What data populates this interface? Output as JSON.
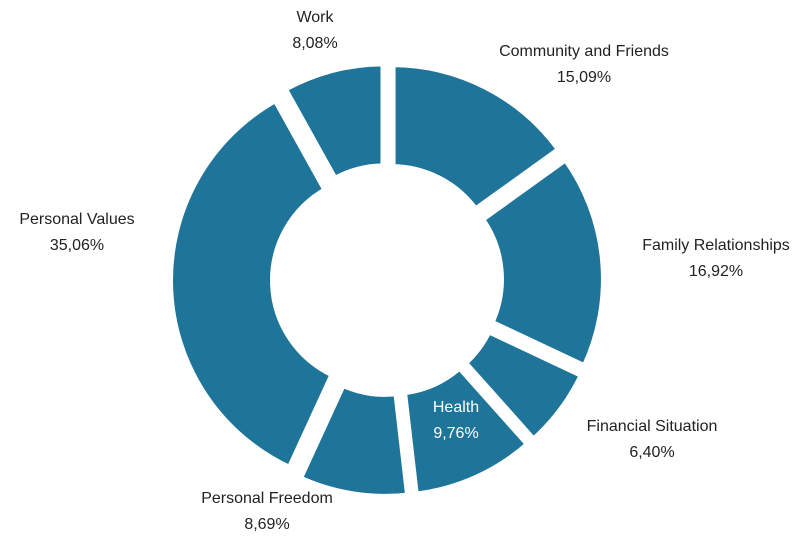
{
  "chart_data": {
    "type": "donut",
    "categories": [
      "Community and Friends",
      "Family Relationships",
      "Financial Situation",
      "Health",
      "Personal Freedom",
      "Personal Values",
      "Work"
    ],
    "values": [
      15.09,
      16.92,
      6.4,
      9.76,
      8.69,
      35.06,
      8.08
    ],
    "value_labels": [
      "15,09%",
      "16,92%",
      "6,40%",
      "9,76%",
      "8,69%",
      "35,06%",
      "8,08%"
    ],
    "color": "#1f7499"
  }
}
